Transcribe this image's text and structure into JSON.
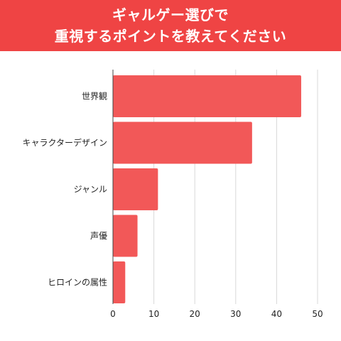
{
  "header": {
    "title_line1": "ギャルゲー選びで",
    "title_line2": "重視するポイントを教えてください"
  },
  "colors": {
    "header_bg": "#ef4444",
    "bar": "#f25858",
    "grid": "#d9d9d9",
    "axis": "#444444"
  },
  "chart_data": {
    "type": "bar",
    "orientation": "horizontal",
    "categories": [
      "世界観",
      "キャラクターデザイン",
      "ジャンル",
      "声優",
      "ヒロインの属性"
    ],
    "values": [
      46,
      34,
      11,
      6,
      3
    ],
    "xlim": [
      0,
      50
    ],
    "xticks": [
      0,
      10,
      20,
      30,
      40,
      50
    ],
    "grid": true,
    "legend": "none"
  }
}
